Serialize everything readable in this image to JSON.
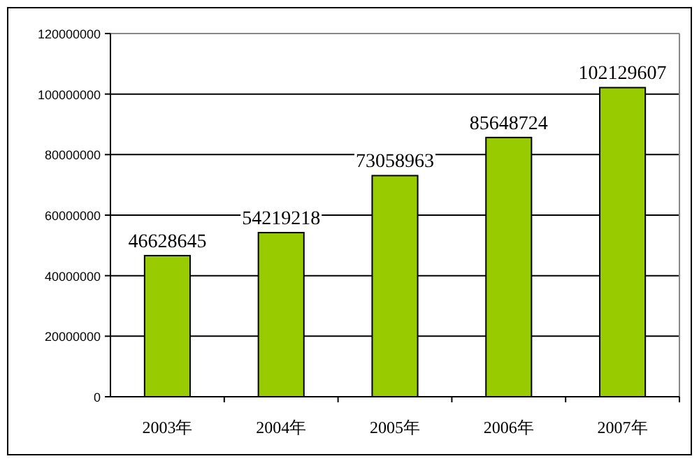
{
  "chart_data": {
    "type": "bar",
    "categories": [
      "2003年",
      "2004年",
      "2005年",
      "2006年",
      "2007年"
    ],
    "values": [
      46628645,
      54219218,
      73058963,
      85648724,
      102129607
    ],
    "color": "#99cc00",
    "ylim": [
      0,
      120000000
    ],
    "yticks": [
      0,
      20000000,
      40000000,
      60000000,
      80000000,
      100000000,
      120000000
    ],
    "grid": "y",
    "data_labels": true
  }
}
